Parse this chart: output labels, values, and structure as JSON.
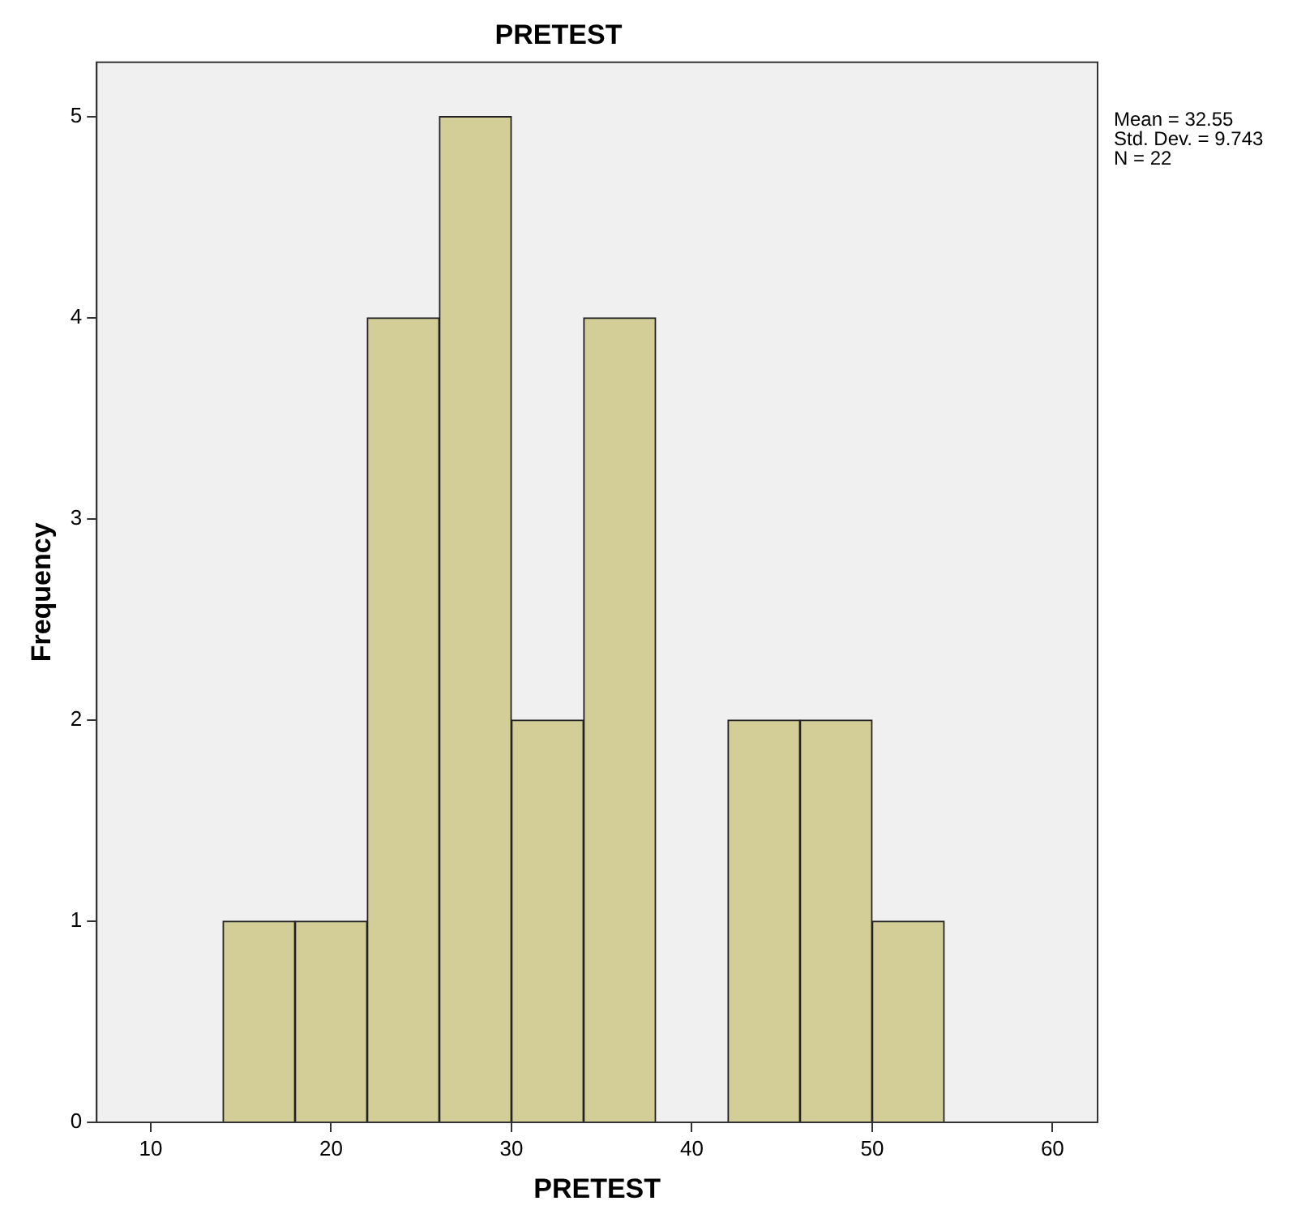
{
  "chart_data": {
    "type": "histogram",
    "title": "PRETEST",
    "xlabel": "PRETEST",
    "ylabel": "Frequency",
    "bins": [
      14,
      18,
      22,
      26,
      30,
      34,
      38,
      42,
      46,
      50,
      54
    ],
    "values": [
      1,
      1,
      4,
      5,
      2,
      4,
      0,
      2,
      2,
      1
    ],
    "color": "#d3ce98",
    "xlim": [
      7,
      62.5
    ],
    "xticks": [
      10,
      20,
      30,
      40,
      50,
      60
    ],
    "ylim": [
      0,
      5.27
    ],
    "yticks": [
      0,
      1,
      2,
      3,
      4,
      5
    ],
    "grid": false,
    "legend": false,
    "annotations": [
      "Mean = 32.55",
      "Std. Dev. = 9.743",
      "N = 22"
    ]
  }
}
